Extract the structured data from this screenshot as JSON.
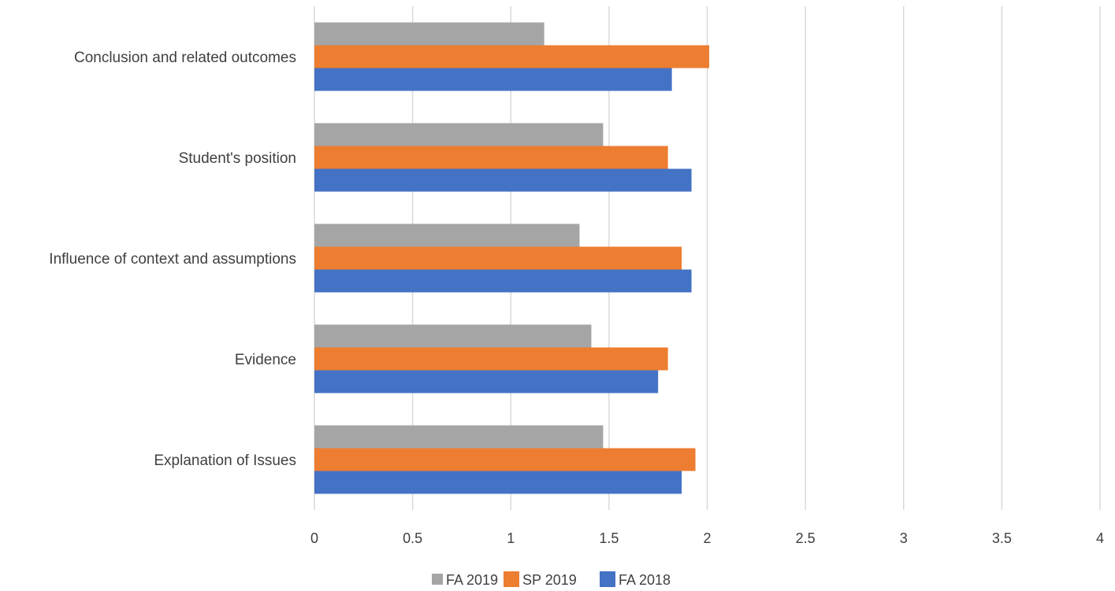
{
  "chart_data": {
    "type": "bar",
    "orientation": "horizontal",
    "title": "",
    "xlabel": "",
    "ylabel": "",
    "xlim": [
      0,
      4
    ],
    "x_ticks": [
      "0",
      "0.5",
      "1",
      "1.5",
      "2",
      "2.5",
      "3",
      "3.5",
      "4"
    ],
    "categories": [
      "Explanation of Issues",
      "Evidence",
      "Influence of context and assumptions",
      "Student's position",
      "Conclusion and related outcomes"
    ],
    "series": [
      {
        "name": "FA 2018",
        "color": "#4472c4",
        "values": [
          1.87,
          1.75,
          1.92,
          1.92,
          1.82
        ]
      },
      {
        "name": "SP 2019",
        "color": "#ed7d31",
        "values": [
          1.94,
          1.8,
          1.87,
          1.8,
          2.01
        ]
      },
      {
        "name": "FA 2019",
        "color": "#a5a5a5",
        "values": [
          1.47,
          1.41,
          1.35,
          1.47,
          1.17
        ]
      }
    ],
    "legend": {
      "position": "bottom",
      "order": [
        "FA 2019",
        "SP 2019",
        "FA 2018"
      ]
    },
    "grid": true
  }
}
